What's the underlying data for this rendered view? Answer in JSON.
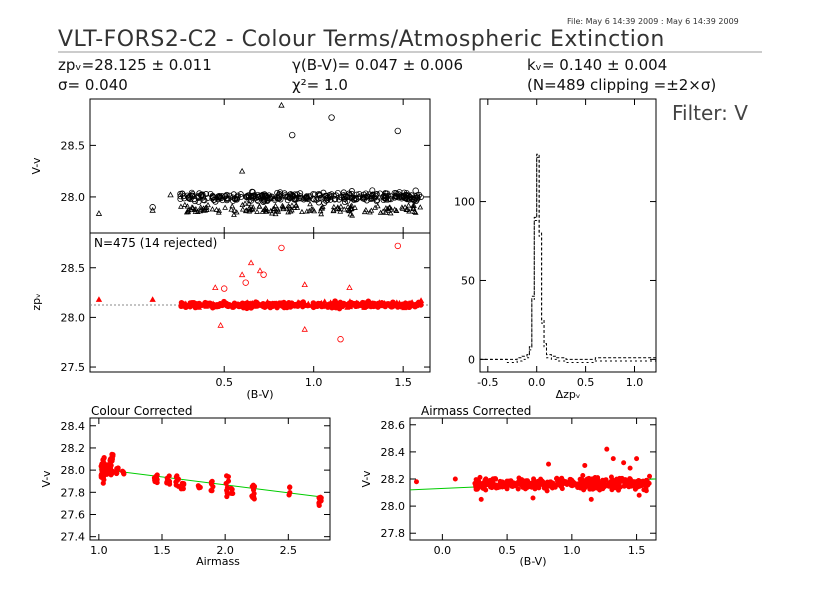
{
  "file_stamp": "File: May  6 14:39 2009 : May  6 14:39 2009",
  "title": "VLT-FORS2-C2 - Colour Terms/Atmospheric Extinction",
  "stats": {
    "zp": "zpᵥ=28.125 ± 0.011",
    "sigma": "σ= 0.040",
    "gamma": "γ(B-V)= 0.047 ± 0.006",
    "chi2": "χ²=  1.0",
    "k": "kᵥ= 0.140 ± 0.004",
    "clipping": "(N=489 clipping =±2×σ)"
  },
  "filter_label": "Filter: V",
  "colors": {
    "accent": "#ff0000",
    "fit_line": "#00cc00",
    "axis": "#000000"
  },
  "chart_data": [
    {
      "id": "top",
      "type": "scatter",
      "ylabel": "V-v",
      "xlim": [
        -0.25,
        1.65
      ],
      "ylim": [
        27.65,
        28.95
      ],
      "yticks": [
        28.0,
        28.5
      ],
      "outliers": [
        {
          "x": 0.82,
          "y": 28.89,
          "m": "t"
        },
        {
          "x": 1.1,
          "y": 28.77,
          "m": "o"
        },
        {
          "x": 0.88,
          "y": 28.6,
          "m": "o"
        },
        {
          "x": 1.47,
          "y": 28.64,
          "m": "o"
        },
        {
          "x": 0.6,
          "y": 28.25,
          "m": "t"
        },
        {
          "x": 0.2,
          "y": 28.02,
          "m": "t"
        },
        {
          "x": -0.2,
          "y": 27.84,
          "m": "t"
        },
        {
          "x": 0.1,
          "y": 27.9,
          "m": "o"
        },
        {
          "x": 0.1,
          "y": 27.87,
          "m": "t"
        },
        {
          "x": 1.57,
          "y": 28.06,
          "m": "o"
        }
      ]
    },
    {
      "id": "mid",
      "type": "scatter",
      "ylabel": "zpᵥ",
      "xlabel": "(B-V)",
      "annotation": "N=475 (14 rejected)",
      "xlim": [
        -0.25,
        1.65
      ],
      "ylim": [
        27.45,
        28.85
      ],
      "yticks": [
        27.5,
        28.0,
        28.5
      ],
      "xticks": [
        0.5,
        1.0,
        1.5
      ],
      "zp_line": 28.125,
      "rejected": [
        {
          "x": 0.82,
          "y": 28.7,
          "m": "o"
        },
        {
          "x": 1.47,
          "y": 28.72,
          "m": "o"
        },
        {
          "x": 1.15,
          "y": 27.78,
          "m": "o"
        },
        {
          "x": 0.6,
          "y": 28.43,
          "m": "t"
        },
        {
          "x": 0.65,
          "y": 28.55,
          "m": "t"
        },
        {
          "x": 0.7,
          "y": 28.47,
          "m": "t"
        },
        {
          "x": 0.72,
          "y": 28.43,
          "m": "o"
        },
        {
          "x": 0.45,
          "y": 28.3,
          "m": "t"
        },
        {
          "x": 0.5,
          "y": 28.29,
          "m": "o"
        },
        {
          "x": 0.62,
          "y": 28.35,
          "m": "o"
        },
        {
          "x": 0.95,
          "y": 28.33,
          "m": "t"
        },
        {
          "x": 0.48,
          "y": 27.92,
          "m": "t"
        },
        {
          "x": 0.95,
          "y": 27.88,
          "m": "t"
        },
        {
          "x": 1.2,
          "y": 28.3,
          "m": "t"
        }
      ],
      "isolated": [
        {
          "x": -0.2,
          "y": 28.18
        },
        {
          "x": 0.1,
          "y": 28.18
        },
        {
          "x": 1.55,
          "y": 28.15
        },
        {
          "x": 1.6,
          "y": 28.17
        }
      ]
    },
    {
      "id": "hist",
      "type": "line",
      "xlabel": "Δzpᵥ",
      "xlim": [
        -0.58,
        1.22
      ],
      "ylim": [
        -8,
        165
      ],
      "xticks": [
        -0.5,
        0.0,
        0.5,
        1.0
      ],
      "yticks": [
        0,
        50,
        100
      ],
      "bin_centers": [
        -0.3,
        -0.2,
        -0.15,
        -0.1,
        -0.075,
        -0.05,
        -0.025,
        0.0,
        0.025,
        0.05,
        0.075,
        0.1,
        0.15,
        0.2,
        0.3,
        0.6
      ],
      "counts": [
        0,
        1,
        2,
        3,
        8,
        40,
        90,
        130,
        80,
        25,
        10,
        3,
        2,
        1,
        0,
        1
      ]
    },
    {
      "id": "colour_corrected",
      "type": "scatter",
      "title": "Colour Corrected",
      "xlabel": "Airmass",
      "ylabel": "V-v",
      "xlim": [
        0.93,
        2.83
      ],
      "ylim": [
        27.37,
        28.47
      ],
      "xticks": [
        1.0,
        1.5,
        2.0,
        2.5
      ],
      "yticks": [
        27.4,
        27.6,
        27.8,
        28.0,
        28.2,
        28.4
      ],
      "fit_line": [
        {
          "x": 1.0,
          "y": 28.01
        },
        {
          "x": 2.75,
          "y": 27.76
        }
      ],
      "groups": [
        {
          "x": 1.03,
          "n": 30,
          "y": [
            27.88,
            28.12
          ]
        },
        {
          "x": 1.06,
          "n": 20,
          "y": [
            27.95,
            28.05
          ]
        },
        {
          "x": 1.1,
          "n": 20,
          "y": [
            27.95,
            28.15
          ]
        },
        {
          "x": 1.15,
          "n": 8,
          "y": [
            27.96,
            28.02
          ]
        },
        {
          "x": 1.2,
          "n": 4,
          "y": [
            27.96,
            27.99
          ]
        },
        {
          "x": 1.45,
          "n": 10,
          "y": [
            27.88,
            27.96
          ]
        },
        {
          "x": 1.55,
          "n": 10,
          "y": [
            27.87,
            27.95
          ]
        },
        {
          "x": 1.62,
          "n": 10,
          "y": [
            27.85,
            27.95
          ]
        },
        {
          "x": 1.66,
          "n": 6,
          "y": [
            27.82,
            27.92
          ]
        },
        {
          "x": 1.8,
          "n": 4,
          "y": [
            27.83,
            27.86
          ]
        },
        {
          "x": 1.9,
          "n": 6,
          "y": [
            27.8,
            27.9
          ]
        },
        {
          "x": 2.02,
          "n": 10,
          "y": [
            27.76,
            27.95
          ]
        },
        {
          "x": 2.05,
          "n": 4,
          "y": [
            27.78,
            27.85
          ]
        },
        {
          "x": 2.22,
          "n": 12,
          "y": [
            27.73,
            27.88
          ]
        },
        {
          "x": 2.5,
          "n": 4,
          "y": [
            27.77,
            27.85
          ]
        },
        {
          "x": 2.75,
          "n": 12,
          "y": [
            27.68,
            27.76
          ]
        }
      ]
    },
    {
      "id": "airmass_corrected",
      "type": "scatter",
      "title": "Airmass Corrected",
      "xlabel": "(B-V)",
      "ylabel": "V-v",
      "xlim": [
        -0.25,
        1.65
      ],
      "ylim": [
        27.75,
        28.65
      ],
      "xticks": [
        0.0,
        0.5,
        1.0,
        1.5
      ],
      "yticks": [
        27.8,
        28.0,
        28.2,
        28.4,
        28.6
      ],
      "fit_line": [
        {
          "x": -0.25,
          "y": 28.12
        },
        {
          "x": 1.65,
          "y": 28.2
        }
      ],
      "scatter_range": {
        "x": [
          0.25,
          1.6
        ],
        "y": [
          28.07,
          28.26
        ]
      },
      "highs": [
        {
          "x": 1.27,
          "y": 28.42
        },
        {
          "x": 1.32,
          "y": 28.35
        },
        {
          "x": 1.4,
          "y": 28.32
        },
        {
          "x": 1.45,
          "y": 28.28
        },
        {
          "x": 1.5,
          "y": 28.35
        },
        {
          "x": 0.82,
          "y": 28.31
        },
        {
          "x": 1.1,
          "y": 28.3
        },
        {
          "x": 0.7,
          "y": 28.06
        },
        {
          "x": 0.3,
          "y": 28.05
        },
        {
          "x": 1.15,
          "y": 28.05
        },
        {
          "x": 1.52,
          "y": 28.08
        }
      ],
      "isolated": [
        {
          "x": -0.2,
          "y": 28.18
        },
        {
          "x": 0.1,
          "y": 28.2
        },
        {
          "x": 1.6,
          "y": 28.22
        }
      ]
    }
  ]
}
